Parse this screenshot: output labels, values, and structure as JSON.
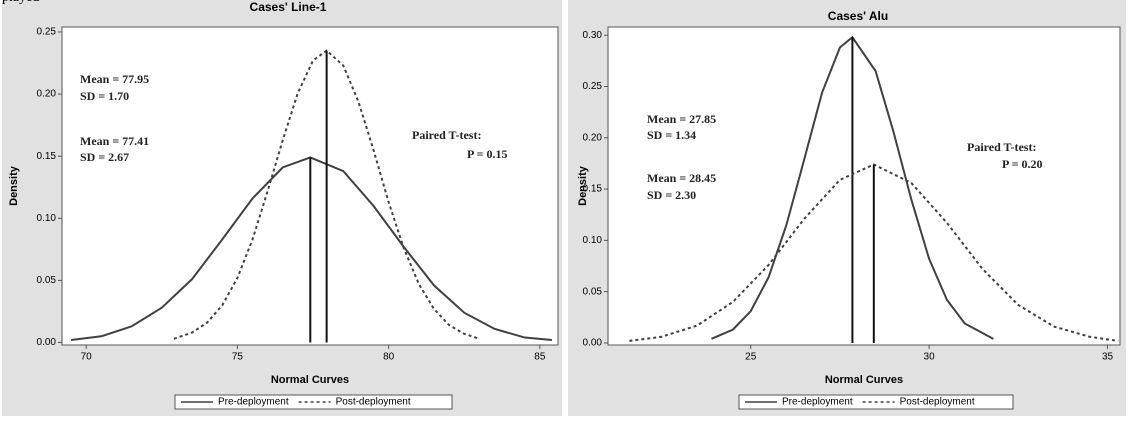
{
  "fragment": "played",
  "chart_data": [
    {
      "type": "line",
      "title": "Cases' Line-1",
      "x_label": "Normal Curves",
      "y_label": "Density",
      "xlim": [
        69.2,
        85.6
      ],
      "xticks": [
        70,
        75,
        80,
        85
      ],
      "ylim": [
        -0.002,
        0.254
      ],
      "yticks": [
        {
          "value": 0,
          "label": "0.00"
        },
        {
          "value": 0.05,
          "label": "0.05"
        },
        {
          "value": 0.1,
          "label": "0.10"
        },
        {
          "value": 0.15,
          "label": "0.15"
        },
        {
          "value": 0.2,
          "label": "0.20"
        },
        {
          "value": 0.25,
          "label": "0.25"
        }
      ],
      "annotations": [
        "Mean = 77.95",
        "SD = 1.70",
        "Mean = 77.41",
        "SD = 2.67",
        "Paired T-test:",
        "P = 0.15"
      ],
      "series": [
        {
          "name": "Pre-deployment",
          "color": "#404040",
          "dash": "solid",
          "mean": 77.41,
          "peak": 0.149,
          "x": [
            69.5,
            70.5,
            71.5,
            72.5,
            73.5,
            74.5,
            75.5,
            76.5,
            77.41,
            78.5,
            79.5,
            80.5,
            81.5,
            82.5,
            83.5,
            84.5,
            85.4
          ],
          "values": [
            0.002,
            0.005,
            0.013,
            0.028,
            0.051,
            0.083,
            0.116,
            0.141,
            0.149,
            0.138,
            0.11,
            0.077,
            0.046,
            0.024,
            0.011,
            0.004,
            0.002
          ]
        },
        {
          "name": "Post-deployment",
          "color": "#404040",
          "dash": "dashed",
          "mean": 77.95,
          "peak": 0.235,
          "x": [
            72.9,
            73.5,
            74,
            74.5,
            75,
            75.5,
            76,
            76.5,
            77,
            77.5,
            77.95,
            78.5,
            79,
            79.5,
            80,
            80.5,
            81,
            81.5,
            82,
            82.5,
            83
          ],
          "values": [
            0.003,
            0.008,
            0.016,
            0.03,
            0.052,
            0.083,
            0.122,
            0.163,
            0.201,
            0.227,
            0.235,
            0.223,
            0.194,
            0.155,
            0.113,
            0.076,
            0.047,
            0.027,
            0.014,
            0.007,
            0.003
          ]
        }
      ]
    },
    {
      "type": "line",
      "title": "Cases' Alu",
      "x_label": "Normal Curves",
      "y_label": "Density",
      "xlim": [
        21.0,
        35.35
      ],
      "xticks": [
        25,
        30,
        35
      ],
      "ylim": [
        -0.002,
        0.308
      ],
      "yticks": [
        {
          "value": 0,
          "label": "0.00"
        },
        {
          "value": 0.05,
          "label": "0.05"
        },
        {
          "value": 0.1,
          "label": "0.10"
        },
        {
          "value": 0.15,
          "label": "0.15"
        },
        {
          "value": 0.2,
          "label": "0.20"
        },
        {
          "value": 0.25,
          "label": "0.25"
        },
        {
          "value": 0.3,
          "label": "0.30"
        }
      ],
      "annotations": [
        "Mean = 27.85",
        "SD = 1.34",
        "Mean = 28.45",
        "SD = 2.30",
        "Paired T-test:",
        "P = 0.20"
      ],
      "series": [
        {
          "name": "Pre-deployment",
          "color": "#404040",
          "dash": "solid",
          "mean": 27.85,
          "peak": 0.298,
          "x": [
            23.9,
            24.5,
            25,
            25.5,
            26,
            26.5,
            27,
            27.5,
            27.85,
            28.5,
            29,
            29.5,
            30,
            30.5,
            31,
            31.8
          ],
          "values": [
            0.004,
            0.013,
            0.031,
            0.064,
            0.115,
            0.179,
            0.244,
            0.288,
            0.298,
            0.265,
            0.206,
            0.14,
            0.082,
            0.042,
            0.019,
            0.004
          ]
        },
        {
          "name": "Post-deployment",
          "color": "#404040",
          "dash": "dashed",
          "mean": 28.45,
          "peak": 0.174,
          "x": [
            21.6,
            22.5,
            23.5,
            24.5,
            25.5,
            26.5,
            27.5,
            28.45,
            29.5,
            30.5,
            31.5,
            32.5,
            33.5,
            34.5,
            35.3
          ],
          "values": [
            0.002,
            0.006,
            0.017,
            0.04,
            0.076,
            0.121,
            0.159,
            0.174,
            0.156,
            0.117,
            0.072,
            0.037,
            0.016,
            0.006,
            0.002
          ]
        }
      ]
    }
  ]
}
